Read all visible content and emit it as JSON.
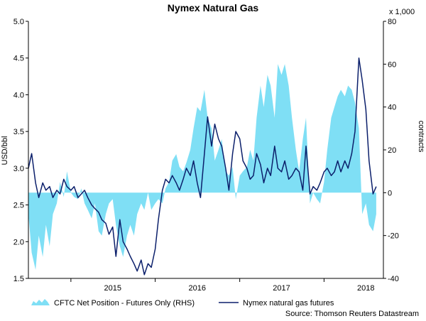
{
  "chart_data": {
    "type": "line",
    "title": "Nymex Natural Gas",
    "ylabel_left": "USD/bbl",
    "ylabel_right": "contracts",
    "right_axis_multiplier": "x 1,000",
    "source": "Source: Thomson Reuters Datastream",
    "x_ticks": [
      "2015",
      "2016",
      "2017",
      "2018"
    ],
    "ylim_left": [
      1.5,
      5.0
    ],
    "yticks_left": [
      "1.5",
      "2.0",
      "2.5",
      "3.0",
      "3.5",
      "4.0",
      "4.5",
      "5.0"
    ],
    "ylim_right": [
      -40,
      80
    ],
    "yticks_right": [
      "-40",
      "-20",
      "0",
      "20",
      "40",
      "60",
      "80"
    ],
    "grid": false,
    "legend_position": "bottom",
    "colors": {
      "area": "#7fdff5",
      "line": "#0b1f6b",
      "axis": "#000000"
    },
    "series": [
      {
        "name": "CFTC Net Position - Futures Only (RHS)",
        "kind": "area",
        "axis": "right",
        "x": [
          "2014-07-01",
          "2014-07-15",
          "2014-08-01",
          "2014-08-15",
          "2014-09-01",
          "2014-09-15",
          "2014-10-01",
          "2014-10-15",
          "2014-11-01",
          "2014-11-15",
          "2014-12-01",
          "2014-12-15",
          "2015-01-01",
          "2015-01-15",
          "2015-02-01",
          "2015-02-15",
          "2015-03-01",
          "2015-03-15",
          "2015-04-01",
          "2015-04-15",
          "2015-05-01",
          "2015-05-15",
          "2015-06-01",
          "2015-06-15",
          "2015-07-01",
          "2015-07-15",
          "2015-08-01",
          "2015-08-15",
          "2015-09-01",
          "2015-09-15",
          "2015-10-01",
          "2015-10-15",
          "2015-11-01",
          "2015-11-15",
          "2015-12-01",
          "2015-12-15",
          "2016-01-01",
          "2016-01-15",
          "2016-02-01",
          "2016-02-15",
          "2016-03-01",
          "2016-03-15",
          "2016-04-01",
          "2016-04-15",
          "2016-05-01",
          "2016-05-15",
          "2016-06-01",
          "2016-06-15",
          "2016-07-01",
          "2016-07-15",
          "2016-08-01",
          "2016-08-15",
          "2016-09-01",
          "2016-09-15",
          "2016-10-01",
          "2016-10-15",
          "2016-11-01",
          "2016-11-15",
          "2016-12-01",
          "2016-12-15",
          "2017-01-01",
          "2017-01-15",
          "2017-02-01",
          "2017-02-15",
          "2017-03-01",
          "2017-03-15",
          "2017-04-01",
          "2017-04-15",
          "2017-05-01",
          "2017-05-15",
          "2017-06-01",
          "2017-06-15",
          "2017-07-01",
          "2017-07-15",
          "2017-08-01",
          "2017-08-15",
          "2017-09-01",
          "2017-09-15",
          "2017-10-01",
          "2017-10-15",
          "2017-11-01",
          "2017-11-15",
          "2017-12-01",
          "2017-12-15",
          "2018-01-01",
          "2018-01-15",
          "2018-02-01",
          "2018-02-15",
          "2018-03-01",
          "2018-03-15",
          "2018-04-01",
          "2018-04-15",
          "2018-05-01",
          "2018-05-15",
          "2018-06-01",
          "2018-06-15",
          "2018-07-01",
          "2018-07-15",
          "2018-08-01",
          "2018-08-15"
        ],
        "values": [
          -10,
          -28,
          -36,
          -20,
          -30,
          -15,
          -25,
          -10,
          -5,
          5,
          -2,
          10,
          0,
          -2,
          -3,
          2,
          -5,
          -8,
          -12,
          -5,
          -18,
          -20,
          -10,
          -5,
          -3,
          -15,
          -25,
          -30,
          -20,
          -15,
          -20,
          -10,
          -5,
          -8,
          0,
          -8,
          -5,
          -3,
          -5,
          2,
          5,
          15,
          18,
          12,
          10,
          14,
          20,
          30,
          40,
          38,
          48,
          35,
          30,
          15,
          20,
          25,
          10,
          8,
          12,
          -3,
          8,
          10,
          12,
          20,
          15,
          35,
          50,
          40,
          55,
          50,
          35,
          60,
          55,
          60,
          50,
          35,
          20,
          10,
          25,
          35,
          -5,
          0,
          -3,
          -5,
          5,
          20,
          35,
          40,
          45,
          48,
          45,
          50,
          48,
          42,
          30,
          -10,
          -5,
          -15,
          -18,
          -10
        ]
      },
      {
        "name": "Nymex natural gas futures",
        "kind": "line",
        "axis": "left",
        "x": [
          "2014-07-01",
          "2014-07-15",
          "2014-08-01",
          "2014-08-15",
          "2014-09-01",
          "2014-09-15",
          "2014-10-01",
          "2014-10-15",
          "2014-11-01",
          "2014-11-15",
          "2014-12-01",
          "2014-12-15",
          "2015-01-01",
          "2015-01-15",
          "2015-02-01",
          "2015-02-15",
          "2015-03-01",
          "2015-03-15",
          "2015-04-01",
          "2015-04-15",
          "2015-05-01",
          "2015-05-15",
          "2015-06-01",
          "2015-06-15",
          "2015-07-01",
          "2015-07-15",
          "2015-08-01",
          "2015-08-15",
          "2015-09-01",
          "2015-09-15",
          "2015-10-01",
          "2015-10-15",
          "2015-11-01",
          "2015-11-15",
          "2015-12-01",
          "2015-12-15",
          "2016-01-01",
          "2016-01-15",
          "2016-02-01",
          "2016-02-15",
          "2016-03-01",
          "2016-03-15",
          "2016-04-01",
          "2016-04-15",
          "2016-05-01",
          "2016-05-15",
          "2016-06-01",
          "2016-06-15",
          "2016-07-01",
          "2016-07-15",
          "2016-08-01",
          "2016-08-15",
          "2016-09-01",
          "2016-09-15",
          "2016-10-01",
          "2016-10-15",
          "2016-11-01",
          "2016-11-15",
          "2016-12-01",
          "2016-12-15",
          "2017-01-01",
          "2017-01-15",
          "2017-02-01",
          "2017-02-15",
          "2017-03-01",
          "2017-03-15",
          "2017-04-01",
          "2017-04-15",
          "2017-05-01",
          "2017-05-15",
          "2017-06-01",
          "2017-06-15",
          "2017-07-01",
          "2017-07-15",
          "2017-08-01",
          "2017-08-15",
          "2017-09-01",
          "2017-09-15",
          "2017-10-01",
          "2017-10-15",
          "2017-11-01",
          "2017-11-15",
          "2017-12-01",
          "2017-12-15",
          "2018-01-01",
          "2018-01-15",
          "2018-02-01",
          "2018-02-15",
          "2018-03-01",
          "2018-03-15",
          "2018-04-01",
          "2018-04-15",
          "2018-05-01",
          "2018-05-15",
          "2018-06-01",
          "2018-06-15",
          "2018-07-01",
          "2018-07-15",
          "2018-08-01",
          "2018-08-15"
        ],
        "values": [
          3.0,
          3.2,
          2.8,
          2.6,
          2.8,
          2.7,
          2.75,
          2.6,
          2.7,
          2.65,
          2.85,
          2.75,
          2.7,
          2.75,
          2.6,
          2.65,
          2.7,
          2.6,
          2.5,
          2.45,
          2.4,
          2.3,
          2.25,
          2.1,
          2.2,
          1.8,
          2.3,
          2.0,
          1.9,
          1.8,
          1.7,
          1.6,
          1.75,
          1.55,
          1.7,
          1.65,
          1.9,
          2.3,
          2.7,
          2.85,
          2.8,
          2.9,
          2.8,
          2.7,
          2.85,
          3.0,
          2.9,
          3.1,
          2.8,
          2.6,
          3.2,
          3.7,
          3.3,
          3.6,
          3.4,
          3.3,
          3.0,
          2.7,
          3.2,
          3.5,
          3.4,
          3.1,
          3.0,
          2.85,
          2.9,
          3.2,
          3.05,
          2.8,
          3.0,
          2.9,
          3.3,
          3.0,
          2.95,
          3.1,
          2.85,
          2.9,
          3.0,
          2.95,
          2.7,
          3.3,
          2.65,
          2.75,
          2.7,
          2.8,
          2.95,
          3.0,
          2.9,
          2.95,
          3.1,
          2.95,
          3.1,
          3.0,
          3.2,
          3.5,
          4.5,
          4.2,
          3.8,
          3.1,
          2.65,
          2.75
        ]
      }
    ]
  }
}
